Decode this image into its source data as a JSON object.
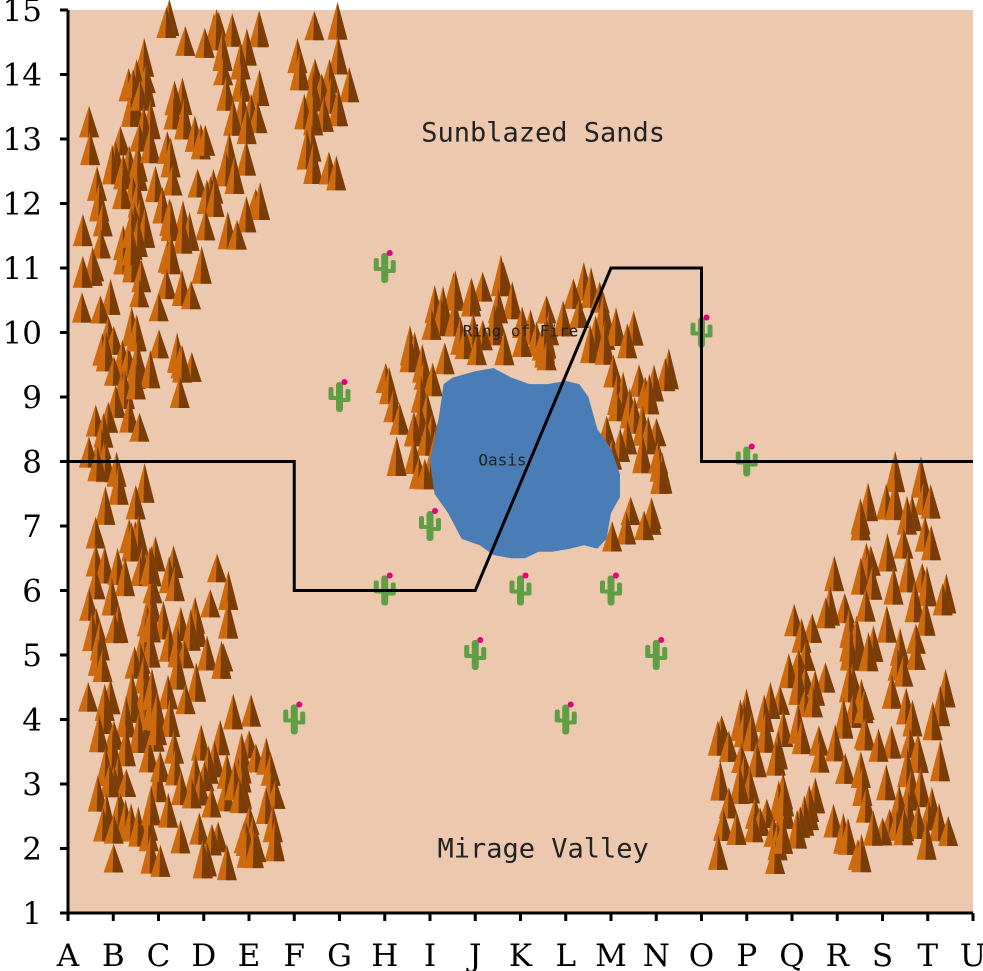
{
  "map": {
    "x_labels": [
      "A",
      "B",
      "C",
      "D",
      "E",
      "F",
      "G",
      "H",
      "I",
      "J",
      "K",
      "L",
      "M",
      "N",
      "O",
      "P",
      "Q",
      "R",
      "S",
      "T",
      "U"
    ],
    "y_labels": [
      "1",
      "2",
      "3",
      "4",
      "5",
      "6",
      "7",
      "8",
      "9",
      "10",
      "11",
      "12",
      "13",
      "14",
      "15"
    ],
    "colors": {
      "land": "#ecc8ae",
      "water": "#4a7db6",
      "tree_light": "#cd6a0e",
      "tree_dark": "#7a3d08",
      "cactus": "#5f9e45",
      "cactus_flower": "#e3007a",
      "border": "#000000"
    },
    "regions": [
      {
        "name": "Sunblazed Sands",
        "x": 11.5,
        "y": 13.1
      },
      {
        "name": "Mirage Valley",
        "x": 11.5,
        "y": 2.0
      },
      {
        "name": "Ring of Fire",
        "x": 11.0,
        "y": 10.0
      },
      {
        "name": "Oasis",
        "x": 10.6,
        "y": 8.0
      }
    ],
    "border_line": [
      [
        1,
        8
      ],
      [
        6,
        8
      ],
      [
        6,
        6
      ],
      [
        10,
        6
      ],
      [
        13,
        11
      ],
      [
        15,
        11
      ],
      [
        15,
        8
      ],
      [
        21,
        8
      ]
    ],
    "cacti": [
      [
        8,
        11
      ],
      [
        7,
        9.0
      ],
      [
        9,
        7.0
      ],
      [
        8,
        6
      ],
      [
        11,
        6
      ],
      [
        13,
        6
      ],
      [
        10,
        5
      ],
      [
        14,
        5
      ],
      [
        6,
        4
      ],
      [
        12,
        4
      ],
      [
        15,
        10
      ],
      [
        16,
        8
      ]
    ],
    "oasis_shape": [
      [
        9.0,
        8.0
      ],
      [
        9.2,
        8.7
      ],
      [
        9.3,
        9.2
      ],
      [
        9.5,
        9.3
      ],
      [
        10.0,
        9.4
      ],
      [
        10.4,
        9.45
      ],
      [
        10.8,
        9.3
      ],
      [
        11.2,
        9.2
      ],
      [
        11.6,
        9.2
      ],
      [
        12.0,
        9.25
      ],
      [
        12.3,
        9.2
      ],
      [
        12.5,
        9.0
      ],
      [
        12.7,
        8.5
      ],
      [
        13.0,
        8.2
      ],
      [
        13.2,
        7.8
      ],
      [
        13.2,
        7.45
      ],
      [
        13.0,
        7.2
      ],
      [
        12.9,
        6.8
      ],
      [
        12.7,
        6.65
      ],
      [
        12.4,
        6.7
      ],
      [
        12.1,
        6.65
      ],
      [
        11.7,
        6.6
      ],
      [
        11.4,
        6.6
      ],
      [
        11.1,
        6.5
      ],
      [
        10.8,
        6.5
      ],
      [
        10.4,
        6.55
      ],
      [
        10.1,
        6.7
      ],
      [
        9.7,
        6.8
      ],
      [
        9.4,
        7.2
      ],
      [
        9.1,
        7.5
      ],
      [
        9.0,
        8.0
      ]
    ],
    "forests": [
      {
        "xmin": 1.3,
        "xmax": 2.6,
        "ymin": 7.6,
        "ymax": 13.6,
        "count": 55,
        "seed": 1
      },
      {
        "xmin": 2.4,
        "xmax": 4.0,
        "ymin": 8.8,
        "ymax": 14.6,
        "count": 55,
        "seed": 2
      },
      {
        "xmin": 4.0,
        "xmax": 5.3,
        "ymin": 11.2,
        "ymax": 14.6,
        "count": 35,
        "seed": 3
      },
      {
        "xmin": 6.0,
        "xmax": 7.3,
        "ymin": 12.2,
        "ymax": 14.7,
        "count": 20,
        "seed": 4
      },
      {
        "xmin": 1.4,
        "xmax": 3.0,
        "ymin": 1.5,
        "ymax": 7.8,
        "count": 75,
        "seed": 5
      },
      {
        "xmin": 2.8,
        "xmax": 4.6,
        "ymin": 1.5,
        "ymax": 6.2,
        "count": 55,
        "seed": 6
      },
      {
        "xmin": 4.6,
        "xmax": 5.6,
        "ymin": 1.5,
        "ymax": 4.0,
        "count": 25,
        "seed": 7
      },
      {
        "xmin": 8.0,
        "xmax": 9.4,
        "ymin": 7.3,
        "ymax": 9.7,
        "count": 25,
        "seed": 8
      },
      {
        "xmin": 9.0,
        "xmax": 12.9,
        "ymin": 9.4,
        "ymax": 10.6,
        "count": 45,
        "seed": 9
      },
      {
        "xmin": 12.8,
        "xmax": 14.3,
        "ymin": 6.6,
        "ymax": 9.8,
        "count": 35,
        "seed": 10
      },
      {
        "xmin": 15.3,
        "xmax": 17.0,
        "ymin": 1.5,
        "ymax": 4.2,
        "count": 35,
        "seed": 11
      },
      {
        "xmin": 16.8,
        "xmax": 18.6,
        "ymin": 1.5,
        "ymax": 6.0,
        "count": 45,
        "seed": 12
      },
      {
        "xmin": 18.5,
        "xmax": 20.5,
        "ymin": 1.5,
        "ymax": 7.6,
        "count": 75,
        "seed": 13
      }
    ]
  }
}
